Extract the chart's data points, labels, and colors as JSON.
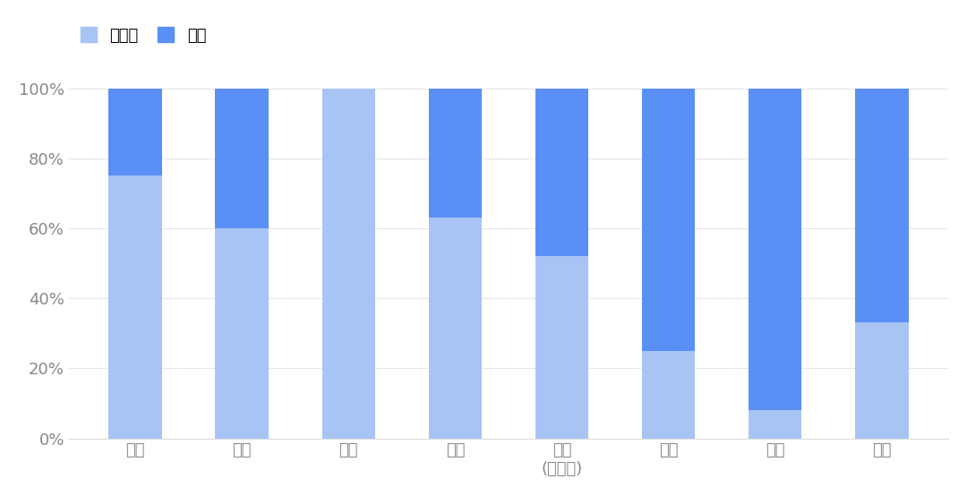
{
  "categories": [
    "美国",
    "欧洲",
    "日本",
    "南美",
    "亚洲\n(除中国)",
    "中国",
    "中东",
    "全球"
  ],
  "recycled": [
    0.75,
    0.6,
    1.0,
    0.63,
    0.52,
    0.25,
    0.08,
    0.33
  ],
  "primary": [
    0.25,
    0.4,
    0.0,
    0.37,
    0.48,
    0.75,
    0.92,
    0.67
  ],
  "color_recycled": "#a8c4f5",
  "color_primary": "#5a8ff5",
  "background_color": "#ffffff",
  "legend_recycled": "再生铝",
  "legend_primary": "原铝",
  "ytick_labels": [
    "0%",
    "20%",
    "40%",
    "60%",
    "80%",
    "100%"
  ],
  "ytick_values": [
    0,
    0.2,
    0.4,
    0.6,
    0.8,
    1.0
  ],
  "bar_width": 0.5,
  "tick_fontsize": 13,
  "legend_fontsize": 13,
  "tick_color": "#888888"
}
